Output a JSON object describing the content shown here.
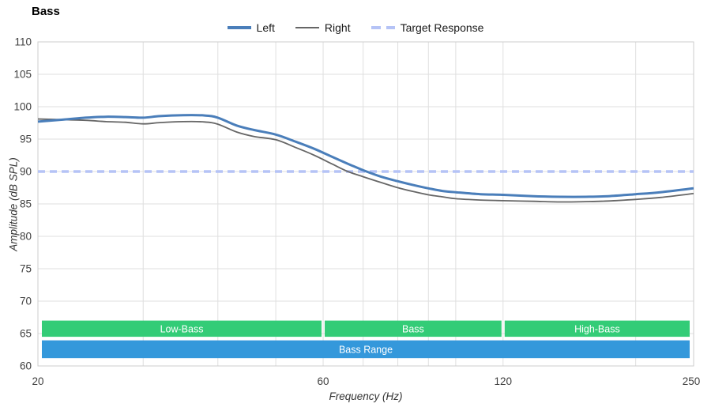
{
  "title": "Bass",
  "colors": {
    "grid": "#dfdfdf",
    "plot_border": "#cccccc",
    "tick_text": "#404040",
    "axis_title_text": "#333333",
    "band_label_text": "#ffffff",
    "background": "#ffffff"
  },
  "chart_data": {
    "type": "line",
    "title": "Bass",
    "xlabel": "Frequency (Hz)",
    "ylabel": "Amplitude (dB SPL)",
    "x_scale": "log",
    "xlim": [
      20,
      250
    ],
    "ylim": [
      60,
      110
    ],
    "grid": true,
    "legend_position": "top-center",
    "x_ticks_labeled": [
      20,
      60,
      120,
      250
    ],
    "x_gridlines": [
      30,
      40,
      50,
      60,
      70,
      80,
      90,
      100,
      120,
      200
    ],
    "y_ticks": [
      60,
      65,
      70,
      75,
      80,
      85,
      90,
      95,
      100,
      105,
      110
    ],
    "series": [
      {
        "name": "Left",
        "color": "#4a7eba",
        "width": 3,
        "dash": null,
        "swatch_height": 4,
        "points": [
          [
            20,
            97.7
          ],
          [
            22,
            98.0
          ],
          [
            24,
            98.3
          ],
          [
            26,
            98.45
          ],
          [
            28,
            98.4
          ],
          [
            30,
            98.3
          ],
          [
            32,
            98.55
          ],
          [
            35,
            98.7
          ],
          [
            38,
            98.65
          ],
          [
            40,
            98.3
          ],
          [
            43,
            97.1
          ],
          [
            46,
            96.4
          ],
          [
            50,
            95.7
          ],
          [
            54,
            94.6
          ],
          [
            58,
            93.5
          ],
          [
            62,
            92.3
          ],
          [
            66,
            91.2
          ],
          [
            70,
            90.2
          ],
          [
            75,
            89.2
          ],
          [
            80,
            88.5
          ],
          [
            85,
            87.9
          ],
          [
            90,
            87.4
          ],
          [
            95,
            87.0
          ],
          [
            100,
            86.8
          ],
          [
            110,
            86.5
          ],
          [
            120,
            86.4
          ],
          [
            135,
            86.2
          ],
          [
            150,
            86.1
          ],
          [
            165,
            86.1
          ],
          [
            180,
            86.2
          ],
          [
            200,
            86.5
          ],
          [
            220,
            86.8
          ],
          [
            250,
            87.4
          ]
        ]
      },
      {
        "name": "Right",
        "color": "#666666",
        "width": 1.8,
        "dash": null,
        "swatch_height": 2,
        "points": [
          [
            20,
            98.1
          ],
          [
            22,
            98.0
          ],
          [
            24,
            97.9
          ],
          [
            26,
            97.7
          ],
          [
            28,
            97.6
          ],
          [
            30,
            97.35
          ],
          [
            32,
            97.55
          ],
          [
            35,
            97.7
          ],
          [
            38,
            97.65
          ],
          [
            40,
            97.3
          ],
          [
            43,
            96.1
          ],
          [
            46,
            95.4
          ],
          [
            50,
            94.9
          ],
          [
            54,
            93.7
          ],
          [
            58,
            92.5
          ],
          [
            62,
            91.2
          ],
          [
            66,
            90.0
          ],
          [
            70,
            89.2
          ],
          [
            75,
            88.3
          ],
          [
            80,
            87.5
          ],
          [
            85,
            86.9
          ],
          [
            90,
            86.4
          ],
          [
            95,
            86.1
          ],
          [
            100,
            85.8
          ],
          [
            110,
            85.6
          ],
          [
            120,
            85.5
          ],
          [
            135,
            85.4
          ],
          [
            150,
            85.3
          ],
          [
            165,
            85.35
          ],
          [
            180,
            85.45
          ],
          [
            200,
            85.7
          ],
          [
            220,
            86.0
          ],
          [
            250,
            86.6
          ]
        ]
      },
      {
        "name": "Target Response",
        "color": "#b5c3f6",
        "width": 3.5,
        "dash": [
          9,
          6
        ],
        "swatch_height": 4,
        "points": [
          [
            20,
            90
          ],
          [
            250,
            90
          ]
        ]
      }
    ],
    "bands": [
      {
        "color": "#33cc77",
        "y_top": 67.0,
        "y_bottom": 64.5,
        "segments": [
          {
            "label": "Low-Bass",
            "from": 20,
            "to": 60
          },
          {
            "label": "Bass",
            "from": 60,
            "to": 120
          },
          {
            "label": "High-Bass",
            "from": 120,
            "to": 250
          }
        ]
      },
      {
        "color": "#3498db",
        "y_top": 63.95,
        "y_bottom": 61.2,
        "segments": [
          {
            "label": "Bass Range",
            "from": 20,
            "to": 250
          }
        ]
      }
    ]
  }
}
